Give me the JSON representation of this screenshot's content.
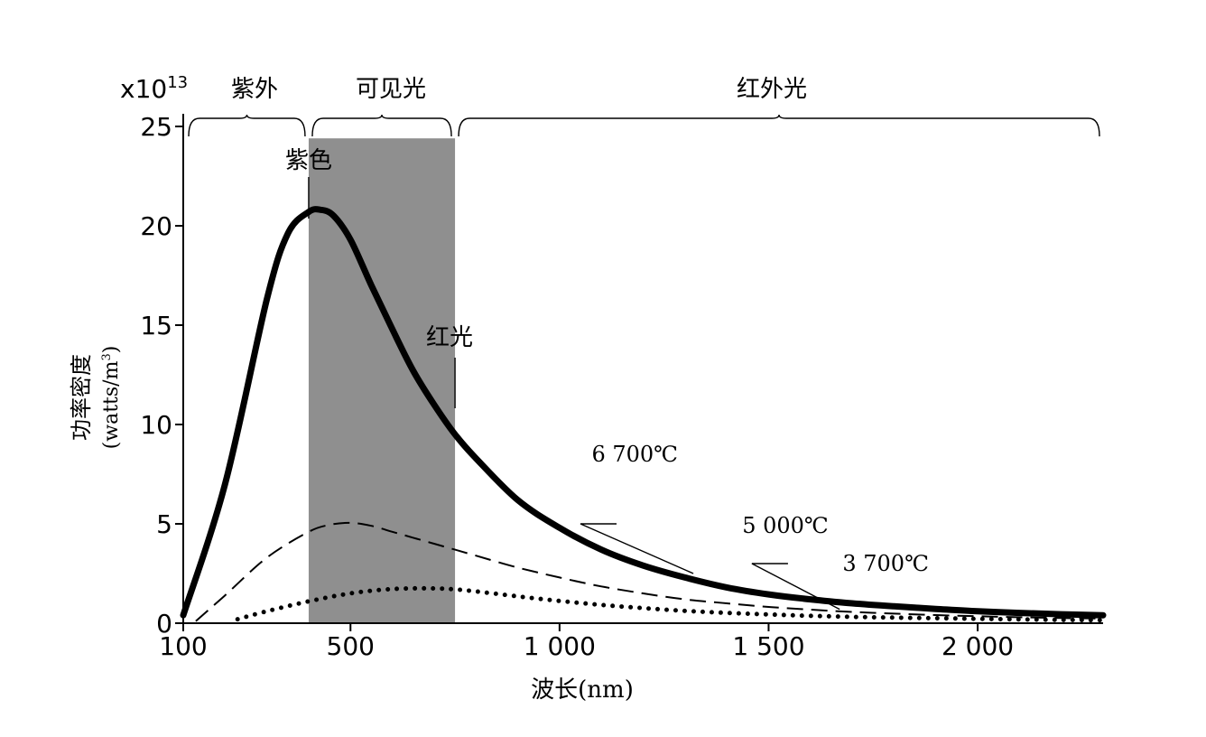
{
  "chart_data": {
    "type": "line",
    "y_multiplier_label": {
      "base": "x10",
      "exp": "13"
    },
    "ylabel": {
      "line1": "功率密度",
      "line2_prefix": "(watts/m",
      "line2_sup": "3",
      "line2_suffix": ")"
    },
    "xlabel": "波长(nm)",
    "xlim": [
      100,
      2300
    ],
    "ylim": [
      0,
      25
    ],
    "xticks": [
      {
        "value": 100,
        "label": "100"
      },
      {
        "value": 500,
        "label": "500"
      },
      {
        "value": 1000,
        "label": "1 000"
      },
      {
        "value": 1500,
        "label": "1 500"
      },
      {
        "value": 2000,
        "label": "2 000"
      }
    ],
    "yticks": [
      {
        "value": 0,
        "label": "0"
      },
      {
        "value": 5,
        "label": "5"
      },
      {
        "value": 10,
        "label": "10"
      },
      {
        "value": 15,
        "label": "15"
      },
      {
        "value": 20,
        "label": "20"
      },
      {
        "value": 25,
        "label": "25"
      }
    ],
    "regions": [
      {
        "label": "紫外",
        "from": 100,
        "to": 400
      },
      {
        "label": "可见光",
        "from": 400,
        "to": 750
      },
      {
        "label": "红外光",
        "from": 750,
        "to": 2300
      }
    ],
    "shaded_band": {
      "from": 400,
      "to": 750,
      "color": "#8f8f8f"
    },
    "markers": [
      {
        "label": "紫色",
        "x": 400
      },
      {
        "label": "红光",
        "x": 750
      }
    ],
    "series": [
      {
        "name": "6 700℃",
        "style": "solid",
        "color": "#000000",
        "x": [
          100,
          200,
          300,
          350,
          400,
          430,
          460,
          500,
          550,
          600,
          650,
          700,
          750,
          800,
          900,
          1000,
          1100,
          1200,
          1300,
          1400,
          1500,
          1600,
          1700,
          1800,
          1900,
          2000,
          2100,
          2200,
          2300
        ],
        "y": [
          0.4,
          7.0,
          16.3,
          19.6,
          20.7,
          20.8,
          20.5,
          19.3,
          17.0,
          14.8,
          12.7,
          11.0,
          9.5,
          8.3,
          6.2,
          4.8,
          3.7,
          2.9,
          2.3,
          1.8,
          1.45,
          1.2,
          1.0,
          0.85,
          0.72,
          0.6,
          0.52,
          0.45,
          0.4
        ]
      },
      {
        "name": "5 000℃",
        "style": "dashed",
        "color": "#000000",
        "x": [
          130,
          200,
          300,
          400,
          450,
          500,
          550,
          600,
          650,
          700,
          750,
          800,
          900,
          1000,
          1100,
          1200,
          1300,
          1400,
          1500,
          1600,
          1700,
          1800,
          1900,
          2000,
          2100,
          2200,
          2300
        ],
        "y": [
          0.1,
          1.4,
          3.3,
          4.6,
          4.95,
          5.05,
          4.9,
          4.6,
          4.3,
          4.0,
          3.7,
          3.4,
          2.8,
          2.3,
          1.85,
          1.5,
          1.2,
          1.0,
          0.82,
          0.68,
          0.57,
          0.48,
          0.41,
          0.35,
          0.3,
          0.26,
          0.23
        ]
      },
      {
        "name": "3 700℃",
        "style": "dotted",
        "color": "#000000",
        "x": [
          230,
          300,
          400,
          500,
          600,
          700,
          750,
          800,
          900,
          1000,
          1100,
          1200,
          1300,
          1400,
          1500,
          1600,
          1700,
          1800,
          1900,
          2000,
          2100,
          2200,
          2300
        ],
        "y": [
          0.2,
          0.6,
          1.1,
          1.5,
          1.72,
          1.75,
          1.7,
          1.6,
          1.35,
          1.12,
          0.92,
          0.76,
          0.62,
          0.52,
          0.44,
          0.37,
          0.32,
          0.28,
          0.25,
          0.22,
          0.19,
          0.17,
          0.15
        ]
      }
    ],
    "series_labels": [
      {
        "series": 0,
        "text": "6 700℃",
        "x": 1180,
        "y": 8.5
      },
      {
        "series": 1,
        "text": "5 000℃",
        "x": 1540,
        "y": 4.9,
        "leader_from": [
          1050,
          5.0
        ],
        "leader_to": [
          1320,
          2.5
        ]
      },
      {
        "series": 2,
        "text": "3 700℃",
        "x": 1780,
        "y": 3.0,
        "leader_from": [
          1460,
          3.0
        ],
        "leader_to": [
          1670,
          0.7
        ]
      }
    ],
    "grid": false,
    "legend": "none"
  }
}
